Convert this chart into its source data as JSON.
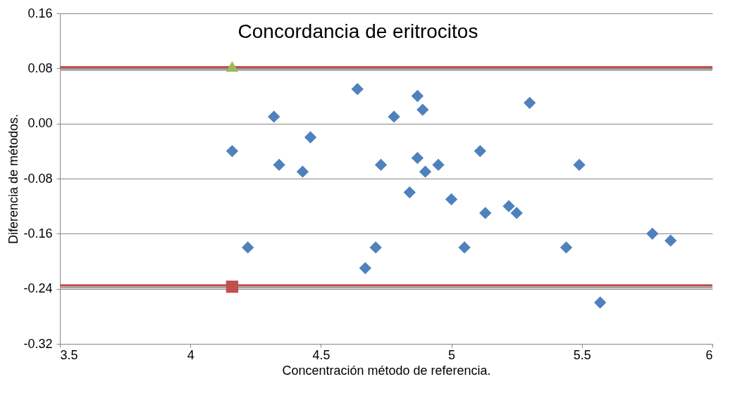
{
  "chart_data": {
    "type": "scatter",
    "title": "Concordancia de eritrocitos",
    "xlabel": "Concentración método de referencia.",
    "ylabel": "Diferencia  de métodos.",
    "xlim": [
      3.5,
      6
    ],
    "xticks": [
      3.5,
      4,
      4.5,
      5,
      5.5,
      6
    ],
    "ylim": [
      -0.32,
      0.16
    ],
    "yticks": [
      -0.32,
      -0.24,
      -0.16,
      -0.08,
      {
        "value": 0,
        "label": "0.00"
      },
      0.08,
      0.16
    ],
    "grid": "y",
    "series": [
      {
        "marker": "diamond",
        "color": "#4f81bd",
        "x": [
          4.16,
          4.22,
          4.32,
          4.34,
          4.43,
          4.46,
          4.64,
          4.67,
          4.71,
          4.73,
          4.78,
          4.84,
          4.87,
          4.87,
          4.89,
          4.9,
          4.95,
          5.0,
          5.05,
          5.11,
          5.13,
          5.22,
          5.25,
          5.3,
          5.44,
          5.49,
          5.57,
          5.77,
          5.84
        ],
        "values": [
          -0.04,
          -0.18,
          0.01,
          -0.06,
          -0.07,
          -0.02,
          0.05,
          -0.21,
          -0.18,
          -0.06,
          0.01,
          -0.1,
          0.04,
          -0.05,
          0.02,
          -0.07,
          -0.06,
          -0.11,
          -0.18,
          -0.04,
          -0.13,
          -0.12,
          -0.13,
          0.03,
          -0.18,
          -0.06,
          -0.26,
          -0.16,
          -0.17
        ]
      },
      {
        "marker": "triangle",
        "color": "#9bbb59",
        "x": [
          4.16
        ],
        "values": [
          0.083
        ]
      },
      {
        "marker": "square",
        "color": "#c0504d",
        "x": [
          4.16
        ],
        "values": [
          -0.237
        ]
      }
    ],
    "ref_lines": [
      {
        "axis": "y",
        "value": 0.078,
        "color": "#a6a6a6"
      },
      {
        "axis": "y",
        "value": -0.238,
        "color": "#a6a6a6"
      },
      {
        "axis": "y",
        "value": 0.082,
        "color": "#c0504d"
      },
      {
        "axis": "y",
        "value": -0.235,
        "color": "#c0504d"
      }
    ]
  }
}
